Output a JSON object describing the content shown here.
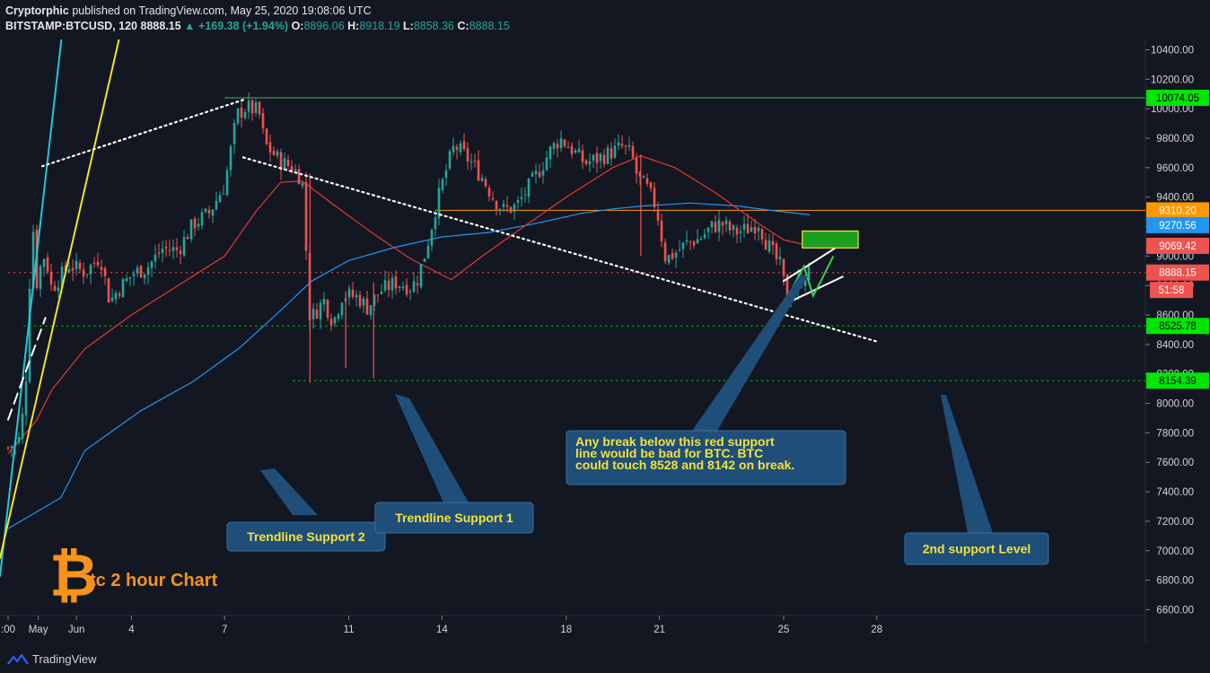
{
  "header": {
    "author": "Cryptorphic",
    "published_text": "published on TradingView.com, May 25, 2020 19:08:06 UTC",
    "symbol": "BITSTAMP:BTCUSD, 120",
    "last": "8888.15",
    "change": "▲ +169.38 (+1.94%)",
    "o_label": "O:",
    "o": "8896.06",
    "h_label": "H:",
    "h": "8918.19",
    "l_label": "L:",
    "l": "8858.36",
    "c_label": "C:",
    "c": "8888.15"
  },
  "colors": {
    "background": "#131722",
    "up_candle": "#26a69a",
    "down_candle": "#ef5350",
    "ma_red": "#e53935",
    "ma_blue": "#2196f3",
    "trendline_cyan": "#26c6da",
    "trendline_yellow": "#f5e425",
    "callout_fill": "#1f4e79",
    "callout_text": "#f2e23a",
    "resistance_green": "#4caf50",
    "level_orange": "#ff9800"
  },
  "chart_data": {
    "type": "candlestick",
    "symbol": "BITSTAMP:BTCUSD",
    "timeframe": "120",
    "y_axis": {
      "ticks": [
        6600,
        6800,
        7000,
        7200,
        7400,
        7600,
        7800,
        8000,
        8200,
        8400,
        8600,
        8800,
        9000,
        9200,
        9400,
        9600,
        9800,
        10000,
        10200,
        10400
      ],
      "tick_labels": [
        "6600.00",
        "6800.00",
        "7000.00",
        "7200.00",
        "7400.00",
        "7600.00",
        "7800.00",
        "8000.00",
        "8200.00",
        "8400.00",
        "8600.00",
        "8800.00",
        "9000.00",
        "9200.00",
        "9400.00",
        "9600.00",
        "9800.00",
        "10000.00",
        "10200.00",
        "10400.00"
      ],
      "range": [
        6560,
        10470
      ]
    },
    "x_axis": {
      "ticks": [
        {
          "label": ":00",
          "day": 29.8
        },
        {
          "label": "May",
          "day": 1
        },
        {
          "label": "4",
          "day": 4
        },
        {
          "label": "7",
          "day": 7
        },
        {
          "label": "11",
          "day": 11
        },
        {
          "label": "14",
          "day": 14
        },
        {
          "label": "18",
          "day": 18
        },
        {
          "label": "21",
          "day": 21
        },
        {
          "label": "25",
          "day": 25
        },
        {
          "label": "28",
          "day": 28
        },
        {
          "label": "Jun",
          "day": 32
        }
      ]
    },
    "price_labels": [
      {
        "text": "10074.05",
        "price": 10074.05,
        "color": "#00e600",
        "text_color": "#000000"
      },
      {
        "text": "9310.20",
        "price": 9310.2,
        "color": "#ff9800",
        "text_color": "#ffffff"
      },
      {
        "text": "9270.56",
        "price": 9210,
        "color": "#2196f3",
        "text_color": "#ffffff"
      },
      {
        "text": "9069.42",
        "price": 9069.42,
        "color": "#ef5350",
        "text_color": "#ffffff"
      },
      {
        "text": "8888.15",
        "price": 8888.15,
        "color": "#ef5350",
        "text_color": "#ffffff"
      },
      {
        "text": "51:58",
        "price": 8770,
        "color": "#ef5350",
        "text_color": "#ffffff"
      },
      {
        "text": "8525.78",
        "price": 8525.78,
        "color": "#00e600",
        "text_color": "#000000"
      },
      {
        "text": "8154.39",
        "price": 8154.39,
        "color": "#00e600",
        "text_color": "#000000"
      }
    ],
    "horizontal_levels": [
      {
        "price": 10074.05,
        "color": "#4caf50",
        "style": "solid",
        "from_day": 7
      },
      {
        "price": 9310.2,
        "color": "#ff9800",
        "style": "solid",
        "from_day": 13.8
      },
      {
        "price": 8888.15,
        "color": "#ef5350",
        "style": "dotted",
        "from_day": 29.8
      },
      {
        "price": 8525.78,
        "color": "#00e600",
        "style": "dotted",
        "from_day": 30.3
      },
      {
        "price": 8154.39,
        "color": "#00e600",
        "style": "dotted",
        "from_day": 9.2
      }
    ],
    "trendlines": [
      {
        "name": "Trendline Support 1",
        "color": "#26c6da",
        "style": "solid",
        "points": [
          [
            29.8,
            7310
          ],
          [
            31.0,
            9520
          ]
        ]
      },
      {
        "name": "Trendline Support 2",
        "color": "#f5e425",
        "style": "solid",
        "points": [
          [
            29.8,
            7190
          ],
          [
            31.9,
            9120
          ]
        ]
      },
      {
        "color": "#ffffff",
        "style": "dashed",
        "points": [
          [
            29.8,
            7890
          ],
          [
            31.0,
            8580
          ]
        ]
      },
      {
        "color": "#ffffff",
        "style": "dotted",
        "points": [
          [
            7.6,
            10060
          ],
          [
            30.9,
            9610
          ]
        ]
      },
      {
        "color": "#ffffff",
        "style": "dotted",
        "points": [
          [
            7.6,
            9670
          ],
          [
            28.0,
            8420
          ]
        ]
      },
      {
        "color": "#ffffff",
        "style": "solid",
        "points": [
          [
            25.0,
            8830
          ],
          [
            26.7,
            9060
          ]
        ]
      },
      {
        "color": "#ffffff",
        "style": "solid",
        "points": [
          [
            25.0,
            8670
          ],
          [
            26.9,
            8860
          ]
        ]
      }
    ],
    "projection_box": {
      "from_day": 25.6,
      "to_day": 27.4,
      "price_low": 9055,
      "price_high": 9170,
      "color": "#1e9e1e"
    },
    "projection_path": [
      [
        25.3,
        8790
      ],
      [
        25.65,
        8930
      ],
      [
        25.95,
        8730
      ],
      [
        26.2,
        8830
      ],
      [
        26.6,
        9000
      ]
    ],
    "annotations": [
      {
        "text": "Trendline Support 2",
        "anchor_day": 2.8,
        "anchor_price": 7500
      },
      {
        "text": "Trendline Support 1",
        "anchor_day": 10.9,
        "anchor_price": 8080
      },
      {
        "text": "Any break below this red support line would be bad for BTC. BTC could touch 8528 and 8142 on break.",
        "anchor_day": 23.7,
        "anchor_price": 8990
      },
      {
        "text": "2nd support Level",
        "anchor_day": 28.0,
        "anchor_price": 8050
      }
    ],
    "candle_path": [
      [
        29.8,
        7700
      ],
      [
        30.2,
        7760
      ],
      [
        30.45,
        8360
      ],
      [
        30.55,
        9420
      ],
      [
        30.7,
        8800
      ],
      [
        30.9,
        8980
      ],
      [
        31.0,
        9010
      ],
      [
        31.2,
        8780
      ],
      [
        2.0,
        8940
      ],
      [
        2.5,
        8890
      ],
      [
        3.0,
        9000
      ],
      [
        3.3,
        8690
      ],
      [
        3.6,
        8780
      ],
      [
        4.1,
        8890
      ],
      [
        4.5,
        8920
      ],
      [
        5.0,
        9050
      ],
      [
        5.5,
        9040
      ],
      [
        6.0,
        9220
      ],
      [
        6.5,
        9290
      ],
      [
        7.0,
        9480
      ],
      [
        7.4,
        9960
      ],
      [
        7.7,
        10010
      ],
      [
        8.1,
        9980
      ],
      [
        8.3,
        9760
      ],
      [
        8.8,
        9640
      ],
      [
        9.2,
        9600
      ],
      [
        9.5,
        9520
      ],
      [
        9.75,
        8570
      ],
      [
        10.2,
        8700
      ],
      [
        10.5,
        8550
      ],
      [
        10.8,
        8740
      ],
      [
        11.3,
        8720
      ],
      [
        11.6,
        8650
      ],
      [
        12.0,
        8760
      ],
      [
        12.5,
        8820
      ],
      [
        13.0,
        8790
      ],
      [
        13.2,
        8840
      ],
      [
        13.5,
        9050
      ],
      [
        13.8,
        9330
      ],
      [
        14.1,
        9560
      ],
      [
        14.4,
        9750
      ],
      [
        14.7,
        9690
      ],
      [
        15.0,
        9620
      ],
      [
        15.3,
        9530
      ],
      [
        15.7,
        9380
      ],
      [
        16.0,
        9310
      ],
      [
        16.4,
        9340
      ],
      [
        16.8,
        9470
      ],
      [
        17.1,
        9570
      ],
      [
        17.5,
        9720
      ],
      [
        17.8,
        9800
      ],
      [
        18.2,
        9720
      ],
      [
        18.6,
        9630
      ],
      [
        19.0,
        9660
      ],
      [
        19.4,
        9700
      ],
      [
        19.8,
        9740
      ],
      [
        20.1,
        9690
      ],
      [
        20.3,
        9530
      ],
      [
        20.6,
        9460
      ],
      [
        20.9,
        9330
      ],
      [
        21.2,
        8980
      ],
      [
        21.5,
        9020
      ],
      [
        21.9,
        9090
      ],
      [
        22.3,
        9120
      ],
      [
        22.7,
        9200
      ],
      [
        23.0,
        9220
      ],
      [
        23.4,
        9160
      ],
      [
        23.8,
        9180
      ],
      [
        24.2,
        9230
      ],
      [
        24.4,
        9110
      ],
      [
        24.7,
        9000
      ],
      [
        24.9,
        8930
      ],
      [
        25.1,
        8720
      ],
      [
        25.4,
        8790
      ],
      [
        25.7,
        8880
      ],
      [
        25.85,
        8888
      ]
    ],
    "ma_red": [
      [
        29.8,
        7660
      ],
      [
        30.7,
        7880
      ],
      [
        31.2,
        8090
      ],
      [
        2.5,
        8370
      ],
      [
        4.0,
        8600
      ],
      [
        5.5,
        8800
      ],
      [
        7.0,
        9000
      ],
      [
        8.0,
        9300
      ],
      [
        8.8,
        9500
      ],
      [
        9.5,
        9510
      ],
      [
        10.5,
        9350
      ],
      [
        11.8,
        9150
      ],
      [
        13.0,
        8980
      ],
      [
        14.3,
        8840
      ],
      [
        15.3,
        9000
      ],
      [
        16.5,
        9180
      ],
      [
        18.0,
        9400
      ],
      [
        19.5,
        9600
      ],
      [
        20.4,
        9680
      ],
      [
        21.5,
        9600
      ],
      [
        22.8,
        9430
      ],
      [
        24.2,
        9220
      ],
      [
        25.0,
        9110
      ],
      [
        25.85,
        9069
      ]
    ],
    "ma_blue": [
      [
        29.8,
        7150
      ],
      [
        31.5,
        7360
      ],
      [
        2.5,
        7680
      ],
      [
        4.3,
        7950
      ],
      [
        6.0,
        8150
      ],
      [
        7.5,
        8380
      ],
      [
        8.8,
        8630
      ],
      [
        9.8,
        8830
      ],
      [
        11.0,
        8970
      ],
      [
        12.5,
        9060
      ],
      [
        14.0,
        9130
      ],
      [
        15.5,
        9160
      ],
      [
        17.0,
        9220
      ],
      [
        18.5,
        9290
      ],
      [
        19.5,
        9320
      ],
      [
        20.5,
        9340
      ],
      [
        22.0,
        9360
      ],
      [
        23.5,
        9340
      ],
      [
        24.6,
        9310
      ],
      [
        25.85,
        9280
      ]
    ],
    "chart_title": "tc 2 hour Chart",
    "chart_logo": "bitcoin-logo"
  },
  "footer": {
    "brand": "TradingView"
  }
}
